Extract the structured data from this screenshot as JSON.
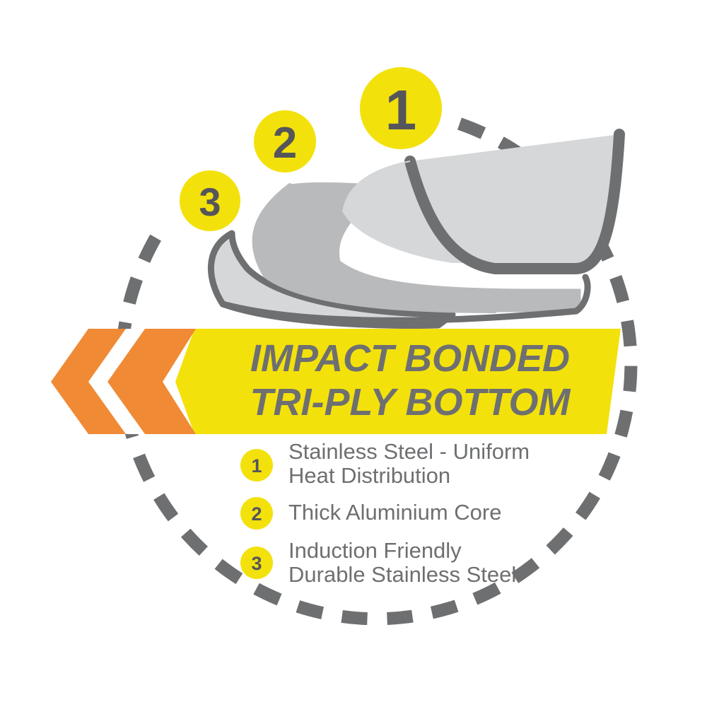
{
  "colors": {
    "yellow": "#f3e10b",
    "orange": "#f08a34",
    "gray_dark": "#6e6f71",
    "gray_layer_light": "#d6d7d8",
    "gray_layer_mid": "#b9babb",
    "white": "#ffffff"
  },
  "layer_badges": [
    "1",
    "2",
    "3"
  ],
  "banner": {
    "line1": "IMPACT BONDED",
    "line2": "TRI-PLY BOTTOM"
  },
  "legend": [
    {
      "num": "1",
      "line1": "Stainless Steel - Uniform",
      "line2": "Heat Distribution"
    },
    {
      "num": "2",
      "line1": "Thick Aluminium Core",
      "line2": ""
    },
    {
      "num": "3",
      "line1": "Induction Friendly",
      "line2": "Durable Stainless Steel"
    }
  ],
  "icons": [
    "dashed-circle-icon",
    "chevron-arrows-icon",
    "tri-ply-layers-icon"
  ]
}
